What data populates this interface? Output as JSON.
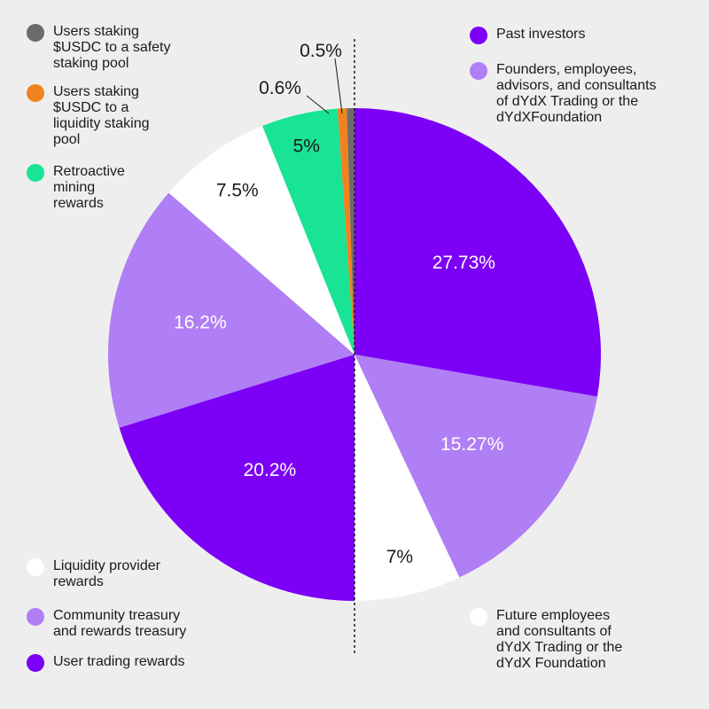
{
  "chart_data": {
    "type": "pie",
    "title": "",
    "slices": [
      {
        "name": "Past investors",
        "value": 27.73,
        "label": "27.73%",
        "color": "#7b00f5",
        "label_color": "#ffffff"
      },
      {
        "name": "Founders, employees, advisors, and consultants of dYdX Trading or the dYdXFoundation",
        "value": 15.27,
        "label": "15.27%",
        "color": "#b07ef5",
        "label_color": "#ffffff"
      },
      {
        "name": "Future employees and consultants of dYdX Trading or the dYdX Foundation",
        "value": 7,
        "label": "7%",
        "color": "#ffffff",
        "label_color": "#1a1a1a"
      },
      {
        "name": "User trading rewards",
        "value": 20.2,
        "label": "20.2%",
        "color": "#7b00f5",
        "label_color": "#ffffff"
      },
      {
        "name": "Community treasury and rewards treasury",
        "value": 16.2,
        "label": "16.2%",
        "color": "#b07ef5",
        "label_color": "#ffffff"
      },
      {
        "name": "Liquidity provider rewards",
        "value": 7.5,
        "label": "7.5%",
        "color": "#ffffff",
        "label_color": "#1a1a1a"
      },
      {
        "name": "Retroactive mining rewards",
        "value": 5,
        "label": "5%",
        "color": "#19e395",
        "label_color": "#1a1a1a"
      },
      {
        "name": "Users staking $USDC to a liquidity staking pool",
        "value": 0.6,
        "label": "0.6%",
        "color": "#f08320",
        "label_color": "#1a1a1a"
      },
      {
        "name": "Users staking $USDC to a safety staking pool",
        "value": 0.5,
        "label": "0.5%",
        "color": "#6b6b6b",
        "label_color": "#1a1a1a"
      }
    ]
  },
  "legend": {
    "top_left": [
      {
        "label": "Users staking\n$USDC to a safety\nstaking pool",
        "color": "#6b6b6b"
      },
      {
        "label": "Users staking\n$USDC to a\nliquidity staking\npool",
        "color": "#f08320"
      },
      {
        "label": "Retroactive\nmining\nrewards",
        "color": "#19e395"
      }
    ],
    "top_right": [
      {
        "label": "Past investors",
        "color": "#7b00f5"
      },
      {
        "label": "Founders, employees,\nadvisors, and consultants\nof dYdX Trading or the\ndYdXFoundation",
        "color": "#b07ef5"
      }
    ],
    "bottom_left": [
      {
        "label": "Liquidity provider\nrewards",
        "color": "#ffffff"
      },
      {
        "label": "Community treasury\nand rewards treasury",
        "color": "#b07ef5"
      },
      {
        "label": "User trading rewards",
        "color": "#7b00f5"
      }
    ],
    "bottom_right": [
      {
        "label": "Future employees\nand consultants of\ndYdX Trading or the\ndYdX Foundation",
        "color": "#ffffff"
      }
    ]
  }
}
